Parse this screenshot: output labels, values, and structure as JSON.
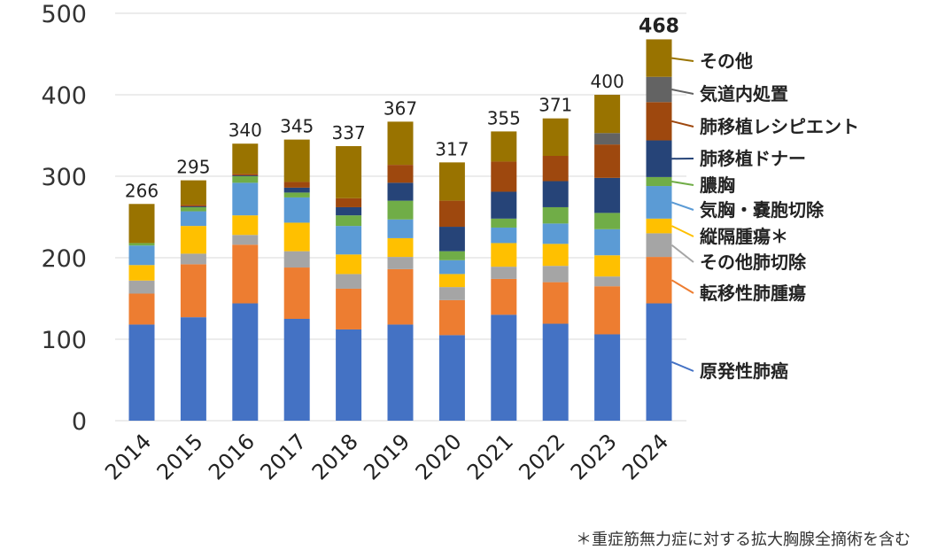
{
  "chart_data": {
    "type": "bar",
    "stacked": true,
    "title": "",
    "xlabel": "",
    "ylabel": "",
    "ylim": [
      0,
      500
    ],
    "yticks": [
      0,
      100,
      200,
      300,
      400,
      500
    ],
    "grid": true,
    "legend_placement": "right",
    "categories": [
      "2014",
      "2015",
      "2016",
      "2017",
      "2018",
      "2019",
      "2020",
      "2021",
      "2022",
      "2023",
      "2024"
    ],
    "totals": [
      266,
      295,
      340,
      345,
      337,
      367,
      317,
      355,
      371,
      400,
      468
    ],
    "series": [
      {
        "name": "原発性肺癌",
        "color": "#4472C4",
        "values": [
          118,
          127,
          144,
          125,
          112,
          118,
          105,
          130,
          119,
          106,
          144
        ]
      },
      {
        "name": "転移性肺腫瘍",
        "color": "#ED7D31",
        "values": [
          38,
          65,
          72,
          63,
          50,
          68,
          43,
          44,
          51,
          59,
          57
        ]
      },
      {
        "name": "その他肺切除",
        "color": "#A5A5A5",
        "values": [
          16,
          13,
          12,
          20,
          18,
          15,
          16,
          15,
          20,
          12,
          29
        ]
      },
      {
        "name": "縦隔腫瘍＊",
        "color": "#FFC000",
        "values": [
          19,
          34,
          24,
          35,
          24,
          23,
          16,
          29,
          27,
          26,
          18
        ]
      },
      {
        "name": "気胸・嚢胞切除",
        "color": "#5B9BD5",
        "values": [
          24,
          18,
          40,
          31,
          35,
          23,
          17,
          19,
          25,
          32,
          40
        ]
      },
      {
        "name": "膿胸",
        "color": "#70AD47",
        "values": [
          3,
          5,
          8,
          6,
          13,
          23,
          11,
          11,
          20,
          20,
          11
        ]
      },
      {
        "name": "肺移植ドナー",
        "color": "#264478",
        "values": [
          0,
          1,
          1,
          6,
          10,
          22,
          30,
          33,
          32,
          43,
          45
        ]
      },
      {
        "name": "肺移植レシピエント",
        "color": "#9E480E",
        "values": [
          0,
          2,
          2,
          7,
          11,
          22,
          32,
          37,
          31,
          41,
          47
        ]
      },
      {
        "name": "気道内処置",
        "color": "#636363",
        "values": [
          0,
          0,
          0,
          0,
          0,
          0,
          0,
          0,
          0,
          14,
          31
        ]
      },
      {
        "name": "その他",
        "color": "#997300",
        "values": [
          48,
          30,
          37,
          52,
          64,
          53,
          47,
          37,
          46,
          47,
          46
        ]
      }
    ],
    "annotations": [
      "＊重症筋無力症に対する拡大胸腺全摘術を含む"
    ]
  }
}
